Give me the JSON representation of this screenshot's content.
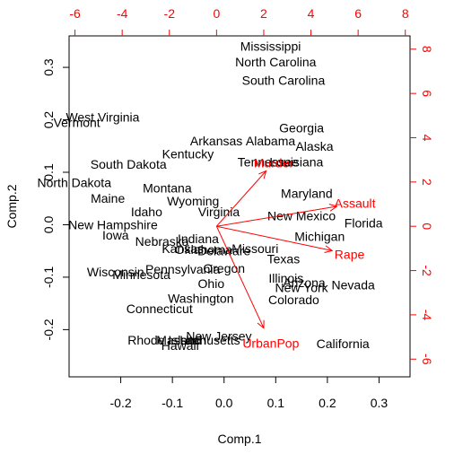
{
  "chart_data": {
    "type": "scatter",
    "subtype": "biplot",
    "title": "",
    "xlabel": "Comp.1",
    "ylabel": "Comp.2",
    "xlim": [
      -0.3,
      0.36
    ],
    "ylim": [
      -0.29,
      0.36
    ],
    "top_axis_lim": [
      -6.25,
      8.2
    ],
    "right_axis_lim": [
      -6.8,
      8.6
    ],
    "x_ticks": [
      -0.2,
      -0.1,
      0.0,
      0.1,
      0.2,
      0.3
    ],
    "y_ticks": [
      -0.2,
      -0.1,
      0.0,
      0.1,
      0.2,
      0.3
    ],
    "top_ticks": [
      -6,
      -4,
      -2,
      0,
      2,
      4,
      6,
      8
    ],
    "right_ticks": [
      -6,
      -4,
      -2,
      0,
      2,
      4,
      6,
      8
    ],
    "point_color": "#000000",
    "loading_color": "#ff0000",
    "observations": [
      {
        "label": "Mississippi",
        "x": 0.09,
        "y": 0.34
      },
      {
        "label": "North Carolina",
        "x": 0.1,
        "y": 0.31
      },
      {
        "label": "South Carolina",
        "x": 0.115,
        "y": 0.275
      },
      {
        "label": "West Virginia",
        "x": -0.235,
        "y": 0.205
      },
      {
        "label": "Vermont",
        "x": -0.285,
        "y": 0.195
      },
      {
        "label": "Georgia",
        "x": 0.15,
        "y": 0.185
      },
      {
        "label": "Alabama",
        "x": 0.09,
        "y": 0.16
      },
      {
        "label": "Arkansas",
        "x": -0.015,
        "y": 0.16
      },
      {
        "label": "Alaska",
        "x": 0.175,
        "y": 0.15
      },
      {
        "label": "Kentucky",
        "x": -0.07,
        "y": 0.135
      },
      {
        "label": "Louisiana",
        "x": 0.14,
        "y": 0.12
      },
      {
        "label": "Tennessee",
        "x": 0.085,
        "y": 0.12
      },
      {
        "label": "South Dakota",
        "x": -0.185,
        "y": 0.115
      },
      {
        "label": "North Dakota",
        "x": -0.29,
        "y": 0.08
      },
      {
        "label": "Montana",
        "x": -0.11,
        "y": 0.07
      },
      {
        "label": "Maryland",
        "x": 0.16,
        "y": 0.06
      },
      {
        "label": "Maine",
        "x": -0.225,
        "y": 0.05
      },
      {
        "label": "Wyoming",
        "x": -0.06,
        "y": 0.045
      },
      {
        "label": "Idaho",
        "x": -0.15,
        "y": 0.025
      },
      {
        "label": "Virginia",
        "x": -0.01,
        "y": 0.025
      },
      {
        "label": "New Mexico",
        "x": 0.15,
        "y": 0.017
      },
      {
        "label": "Florida",
        "x": 0.27,
        "y": 0.003
      },
      {
        "label": "New Hampshire",
        "x": -0.215,
        "y": 0.0
      },
      {
        "label": "Iowa",
        "x": -0.21,
        "y": -0.02
      },
      {
        "label": "Michigan",
        "x": 0.185,
        "y": -0.022
      },
      {
        "label": "Indiana",
        "x": -0.05,
        "y": -0.027
      },
      {
        "label": "Nebraska",
        "x": -0.12,
        "y": -0.032
      },
      {
        "label": "Missouri",
        "x": 0.06,
        "y": -0.045
      },
      {
        "label": "Kansas",
        "x": -0.08,
        "y": -0.045
      },
      {
        "label": "Oklahoma",
        "x": -0.04,
        "y": -0.047
      },
      {
        "label": "Delaware",
        "x": 0.0,
        "y": -0.05
      },
      {
        "label": "Texas",
        "x": 0.115,
        "y": -0.065
      },
      {
        "label": "Pennsylvania",
        "x": -0.08,
        "y": -0.085
      },
      {
        "label": "Oregon",
        "x": 0.0,
        "y": -0.083
      },
      {
        "label": "Wisconsin",
        "x": -0.21,
        "y": -0.09
      },
      {
        "label": "Minnesota",
        "x": -0.16,
        "y": -0.095
      },
      {
        "label": "Illinois",
        "x": 0.12,
        "y": -0.102
      },
      {
        "label": "Arizona",
        "x": 0.155,
        "y": -0.11
      },
      {
        "label": "Nevada",
        "x": 0.25,
        "y": -0.115
      },
      {
        "label": "Ohio",
        "x": -0.025,
        "y": -0.112
      },
      {
        "label": "New York",
        "x": 0.15,
        "y": -0.12
      },
      {
        "label": "Washington",
        "x": -0.045,
        "y": -0.14
      },
      {
        "label": "Colorado",
        "x": 0.135,
        "y": -0.143
      },
      {
        "label": "Connecticut",
        "x": -0.125,
        "y": -0.16
      },
      {
        "label": "New Jersey",
        "x": -0.01,
        "y": -0.212
      },
      {
        "label": "Utah",
        "x": -0.06,
        "y": -0.22
      },
      {
        "label": "Rhode Island",
        "x": -0.115,
        "y": -0.22
      },
      {
        "label": "Massachusetts",
        "x": -0.05,
        "y": -0.22
      },
      {
        "label": "Hawaii",
        "x": -0.085,
        "y": -0.23
      },
      {
        "label": "California",
        "x": 0.23,
        "y": -0.227
      }
    ],
    "loadings": [
      {
        "label": "Murder",
        "x": 2.1,
        "y": 2.5
      },
      {
        "label": "Assault",
        "x": 5.1,
        "y": 0.9
      },
      {
        "label": "Rape",
        "x": 4.9,
        "y": -1.1
      },
      {
        "label": "UrbanPop",
        "x": 2.0,
        "y": -4.6
      }
    ]
  }
}
